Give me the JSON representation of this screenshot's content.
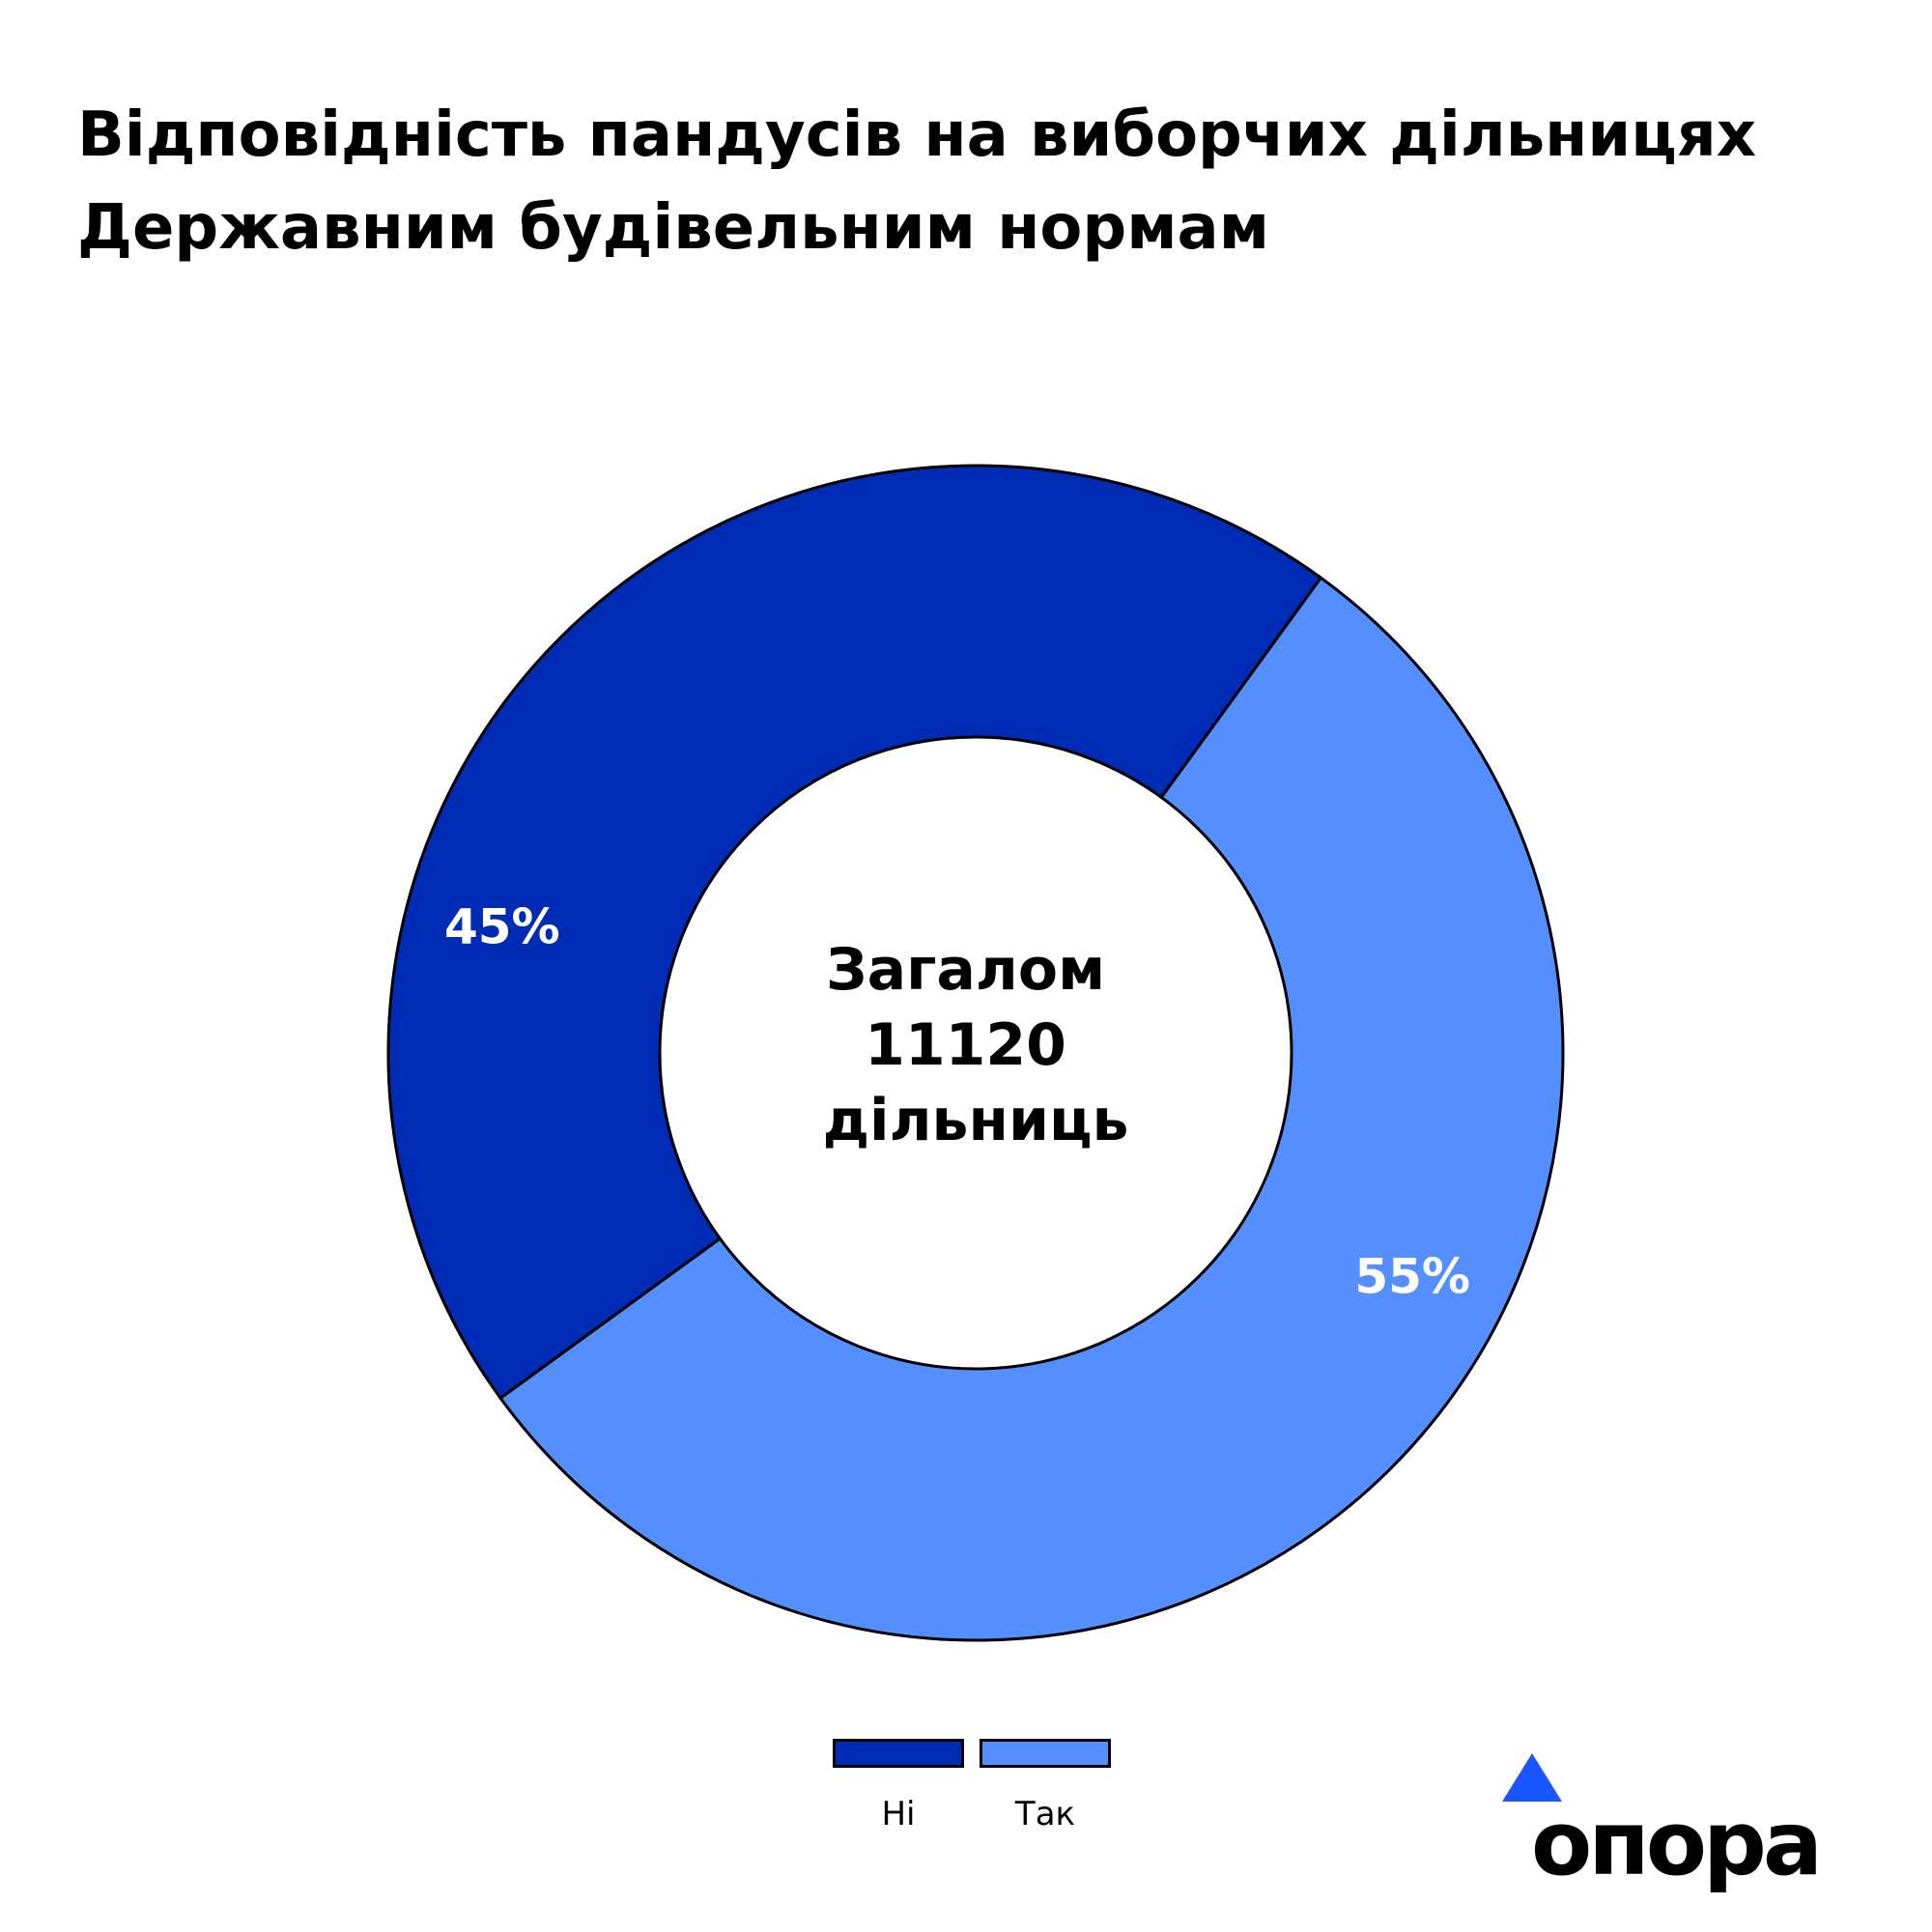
{
  "title_lines": [
    "Відповідність пандусів на виборчих дільницях",
    "Державним будівельним нормам"
  ],
  "chart_data": {
    "type": "pie",
    "title": "Відповідність пандусів на виборчих дільницях Державним будівельним нормам",
    "categories": [
      "Ні",
      "Так"
    ],
    "values": [
      45,
      55
    ],
    "value_labels": [
      "45%",
      "55%"
    ],
    "colors": [
      "#002bb4",
      "#558eff"
    ],
    "donut": true,
    "center_label_lines": [
      "Загалом",
      "11120",
      "дільниць"
    ],
    "legend_placement": "bottom"
  },
  "logo": {
    "text": "опора",
    "accent_color": "#1a56ff"
  }
}
